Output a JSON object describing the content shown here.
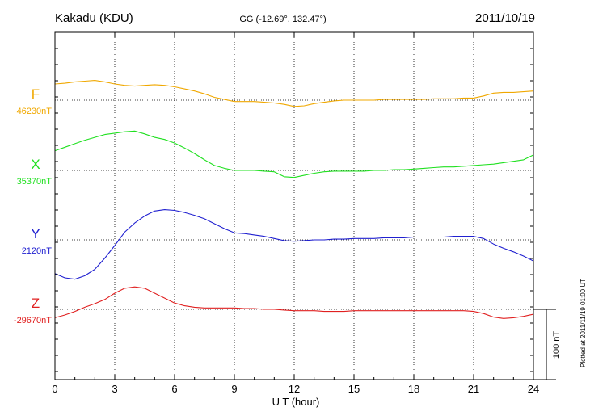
{
  "chart_data": {
    "type": "line",
    "title": "Kakadu (KDU)",
    "subtitle": "GG (-12.69°, 132.47°)",
    "date": "2011/10/19",
    "xlabel": "U T (hour)",
    "xlim": [
      0,
      24
    ],
    "xticks": [
      0,
      3,
      6,
      9,
      12,
      15,
      18,
      21,
      24
    ],
    "xtick_labels": [
      "0",
      "3",
      "6",
      "9",
      "12",
      "15",
      "18",
      "21",
      "24"
    ],
    "grid": true,
    "scale_bar": {
      "label": "100 nT",
      "nT": 100
    },
    "footnote": "Plotted at 2011/11/19 01:00 UT",
    "series": [
      {
        "name": "F",
        "baseline_label": "46230nT",
        "color": "#f0a800",
        "x": [
          0,
          0.5,
          1,
          1.5,
          2,
          2.5,
          3,
          3.5,
          4,
          4.5,
          5,
          5.5,
          6,
          6.5,
          7,
          7.5,
          8,
          8.5,
          9,
          9.5,
          10,
          10.5,
          11,
          11.5,
          12,
          12.5,
          13,
          13.5,
          14,
          14.5,
          15,
          15.5,
          16,
          16.5,
          17,
          17.5,
          18,
          18.5,
          19,
          19.5,
          20,
          20.5,
          21,
          21.5,
          22,
          22.5,
          23,
          23.5,
          24
        ],
        "y": [
          23,
          24,
          26,
          27,
          28,
          26,
          23,
          21,
          20,
          21,
          22,
          21,
          19,
          16,
          13,
          9,
          4,
          1,
          -2,
          -2,
          -2,
          -3,
          -4,
          -6,
          -9,
          -8,
          -5,
          -3,
          -1,
          0,
          0,
          0,
          0,
          1,
          1,
          1,
          1,
          1,
          2,
          2,
          2,
          3,
          3,
          6,
          10,
          11,
          11,
          12,
          13
        ]
      },
      {
        "name": "X",
        "baseline_label": "35370nT",
        "color": "#20e020",
        "x": [
          0,
          0.5,
          1,
          1.5,
          2,
          2.5,
          3,
          3.5,
          4,
          4.5,
          5,
          5.5,
          6,
          6.5,
          7,
          7.5,
          8,
          8.5,
          9,
          9.5,
          10,
          10.5,
          11,
          11.5,
          12,
          12.5,
          13,
          13.5,
          14,
          14.5,
          15,
          15.5,
          16,
          16.5,
          17,
          17.5,
          18,
          18.5,
          19,
          19.5,
          20,
          20.5,
          21,
          21.5,
          22,
          22.5,
          23,
          23.5,
          24
        ],
        "y": [
          28,
          33,
          38,
          43,
          47,
          51,
          53,
          55,
          56,
          52,
          47,
          44,
          39,
          32,
          24,
          15,
          7,
          3,
          0,
          0,
          0,
          -1,
          -2,
          -9,
          -10,
          -7,
          -4,
          -2,
          -1,
          -1,
          -1,
          -1,
          0,
          0,
          1,
          1,
          2,
          3,
          4,
          5,
          5,
          6,
          7,
          8,
          9,
          11,
          13,
          15,
          22
        ]
      },
      {
        "name": "Y",
        "baseline_label": "2120nT",
        "color": "#2020d0",
        "x": [
          0,
          0.5,
          1,
          1.5,
          2,
          2.5,
          3,
          3.5,
          4,
          4.5,
          5,
          5.5,
          6,
          6.5,
          7,
          7.5,
          8,
          8.5,
          9,
          9.5,
          10,
          10.5,
          11,
          11.5,
          12,
          12.5,
          13,
          13.5,
          14,
          14.5,
          15,
          15.5,
          16,
          16.5,
          17,
          17.5,
          18,
          18.5,
          19,
          19.5,
          20,
          20.5,
          21,
          21.5,
          22,
          22.5,
          23,
          23.5,
          24
        ],
        "y": [
          -48,
          -54,
          -56,
          -51,
          -42,
          -26,
          -8,
          11,
          24,
          34,
          41,
          43,
          42,
          39,
          35,
          30,
          23,
          16,
          10,
          9,
          7,
          5,
          2,
          -1,
          -2,
          -1,
          0,
          0,
          1,
          1,
          2,
          2,
          2,
          3,
          3,
          3,
          4,
          4,
          4,
          4,
          5,
          5,
          5,
          2,
          -6,
          -12,
          -17,
          -23,
          -30
        ]
      },
      {
        "name": "Z",
        "baseline_label": "-29670nT",
        "color": "#e02020",
        "x": [
          0,
          0.5,
          1,
          1.5,
          2,
          2.5,
          3,
          3.5,
          4,
          4.5,
          5,
          5.5,
          6,
          6.5,
          7,
          7.5,
          8,
          8.5,
          9,
          9.5,
          10,
          10.5,
          11,
          11.5,
          12,
          12.5,
          13,
          13.5,
          14,
          14.5,
          15,
          15.5,
          16,
          16.5,
          17,
          17.5,
          18,
          18.5,
          19,
          19.5,
          20,
          20.5,
          21,
          21.5,
          22,
          22.5,
          23,
          23.5,
          24
        ],
        "y": [
          -12,
          -8,
          -3,
          3,
          8,
          14,
          23,
          30,
          32,
          30,
          23,
          16,
          9,
          5,
          3,
          2,
          2,
          2,
          2,
          1,
          1,
          0,
          0,
          -1,
          -2,
          -2,
          -2,
          -3,
          -3,
          -3,
          -2,
          -2,
          -2,
          -2,
          -2,
          -2,
          -2,
          -2,
          -2,
          -2,
          -2,
          -2,
          -3,
          -6,
          -11,
          -13,
          -12,
          -10,
          -7
        ]
      }
    ]
  }
}
